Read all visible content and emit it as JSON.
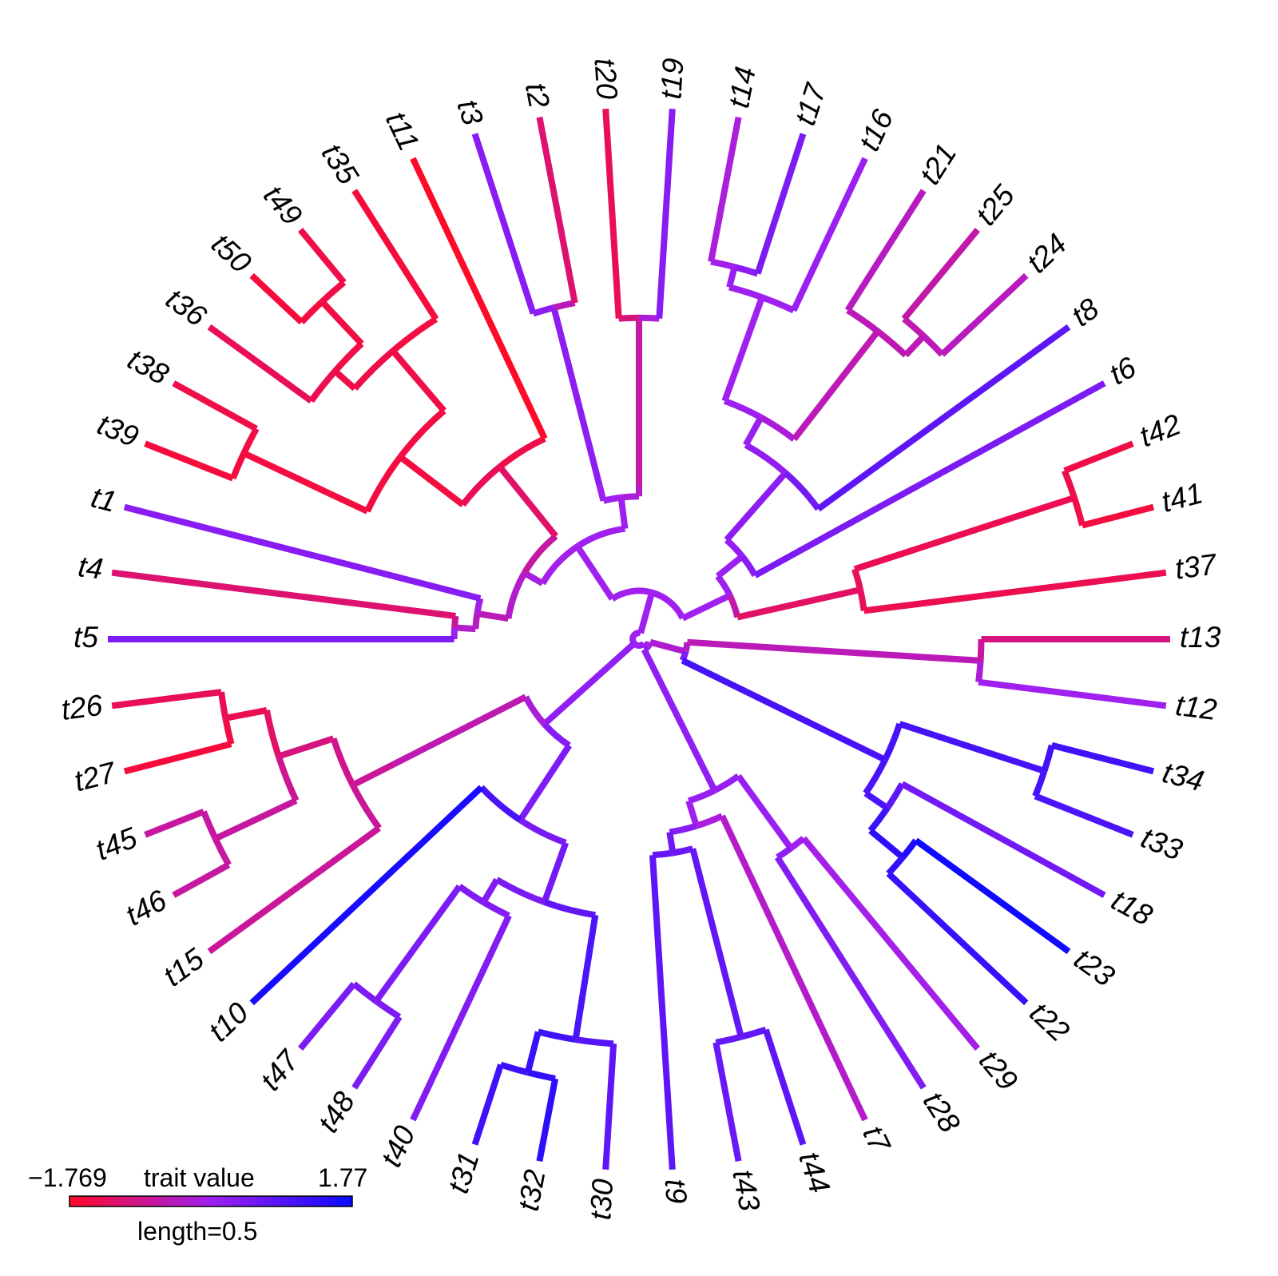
{
  "tips": [
    "t13",
    "t12",
    "t34",
    "t33",
    "t18",
    "t23",
    "t22",
    "t29",
    "t28",
    "t7",
    "t44",
    "t43",
    "t9",
    "t30",
    "t32",
    "t31",
    "t40",
    "t48",
    "t47",
    "t10",
    "t15",
    "t46",
    "t45",
    "t27",
    "t26",
    "t5",
    "t4",
    "t1",
    "t39",
    "t38",
    "t36",
    "t50",
    "t49",
    "t35",
    "t11",
    "t3",
    "t2",
    "t20",
    "t19",
    "t14",
    "t17",
    "t16",
    "t21",
    "t25",
    "t24",
    "t8",
    "t6",
    "t42",
    "t41",
    "t37"
  ],
  "legend": {
    "min_label": "−1.769",
    "max_label": "1.77",
    "title": "trait value",
    "length_label": "length=0.5",
    "low_color": "#ff0a28",
    "mid_color": "#a020f0",
    "high_color": "#0a0aff"
  }
}
